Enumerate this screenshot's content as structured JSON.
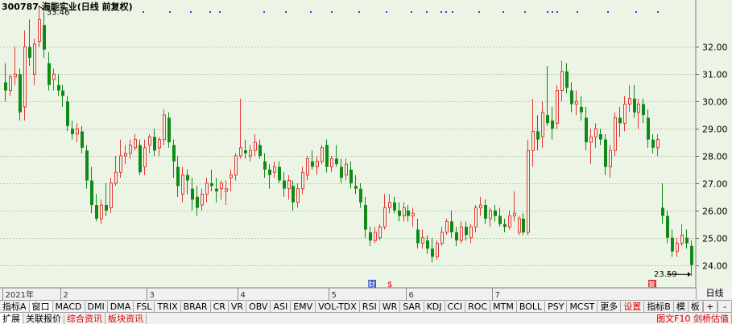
{
  "stock": {
    "code": "300787",
    "name": "海能实业",
    "period": "日线",
    "adjust": "前复权"
  },
  "header_title": "300787 海能实业(日线 前复权)",
  "y_axis": {
    "ticks": [
      24.0,
      25.0,
      26.0,
      27.0,
      28.0,
      29.0,
      30.0,
      31.0,
      32.0
    ],
    "tick_labels": [
      "24.00",
      "25.00",
      "26.00",
      "27.00",
      "28.00",
      "29.00",
      "30.00",
      "31.00",
      "32.00"
    ]
  },
  "x_axis": {
    "labels": [
      "2021年",
      "2",
      "3",
      "4",
      "5",
      "6",
      "7"
    ]
  },
  "high_marker": "33.46",
  "low_marker": "23.59",
  "event_badges": {
    "cai": "财",
    "s": "$",
    "fu": "复"
  },
  "period_box": "日线",
  "toolbar1": [
    "指标A",
    "窗口",
    "MACD",
    "DMI",
    "DMA",
    "FSL",
    "TRIX",
    "BRAR",
    "CR",
    "VR",
    "OBV",
    "ASI",
    "EMV",
    "VOL-TDX",
    "RSI",
    "WR",
    "SAR",
    "KDJ",
    "CCI",
    "ROC",
    "MTM",
    "BOLL",
    "PSY",
    "MCST",
    "更多",
    "设置"
  ],
  "toolbar1_right": [
    "指标B",
    "模",
    "板",
    "+",
    "-"
  ],
  "toolbar2": [
    "扩展",
    "关联报价",
    "综合资讯",
    "板块资讯"
  ],
  "toolbar2_right": "图文F10 剑桥估值",
  "colors": {
    "bg": "#ecf5e5",
    "up": "#e53935",
    "down": "#0f8a16",
    "grid": "#b8c8b0",
    "text": "#000000"
  },
  "chart_data": {
    "type": "candlestick",
    "y_range": [
      23.4,
      33.6
    ],
    "months": [
      {
        "label": "2021年",
        "index": 0
      },
      {
        "label": "2",
        "index": 12
      },
      {
        "label": "3",
        "index": 30
      },
      {
        "label": "4",
        "index": 49
      },
      {
        "label": "5",
        "index": 68
      },
      {
        "label": "6",
        "index": 84
      },
      {
        "label": "7",
        "index": 102
      }
    ],
    "candles": [
      [
        30.7,
        31.4,
        30.0,
        30.4
      ],
      [
        30.4,
        31.0,
        30.2,
        30.9
      ],
      [
        30.9,
        32.0,
        30.6,
        31.0
      ],
      [
        31.0,
        31.2,
        29.3,
        29.6
      ],
      [
        29.8,
        32.6,
        29.3,
        32.0
      ],
      [
        32.0,
        33.0,
        31.3,
        31.6
      ],
      [
        31.0,
        32.3,
        30.6,
        32.1
      ],
      [
        32.2,
        33.5,
        32.0,
        33.0
      ],
      [
        32.8,
        33.3,
        31.6,
        31.9
      ],
      [
        31.4,
        31.8,
        30.4,
        30.6
      ],
      [
        30.8,
        31.2,
        30.4,
        31.0
      ],
      [
        30.6,
        31.0,
        30.2,
        30.4
      ],
      [
        30.4,
        30.6,
        29.8,
        30.2
      ],
      [
        30.0,
        30.2,
        28.9,
        29.1
      ],
      [
        29.0,
        29.3,
        28.6,
        28.8
      ],
      [
        28.8,
        29.2,
        28.5,
        29.0
      ],
      [
        28.9,
        29.1,
        28.1,
        28.3
      ],
      [
        28.2,
        28.4,
        26.8,
        27.1
      ],
      [
        27.1,
        27.6,
        25.9,
        26.2
      ],
      [
        26.2,
        26.6,
        25.6,
        25.7
      ],
      [
        25.7,
        26.4,
        25.5,
        26.2
      ],
      [
        26.2,
        27.0,
        25.8,
        26.0
      ],
      [
        26.1,
        27.2,
        25.9,
        27.0
      ],
      [
        27.0,
        28.0,
        26.9,
        27.4
      ],
      [
        27.4,
        28.6,
        27.2,
        28.0
      ],
      [
        28.0,
        28.4,
        27.7,
        28.1
      ],
      [
        28.1,
        28.6,
        27.9,
        28.4
      ],
      [
        28.3,
        28.8,
        28.2,
        28.6
      ],
      [
        28.4,
        28.6,
        27.3,
        27.4
      ],
      [
        27.6,
        28.6,
        27.3,
        28.3
      ],
      [
        28.4,
        28.8,
        28.1,
        28.7
      ],
      [
        28.7,
        29.0,
        28.0,
        28.2
      ],
      [
        28.3,
        28.7,
        28.0,
        28.6
      ],
      [
        28.6,
        29.7,
        28.4,
        29.5
      ],
      [
        29.4,
        29.6,
        28.3,
        28.5
      ],
      [
        28.4,
        28.6,
        27.2,
        27.8
      ],
      [
        27.6,
        28.0,
        26.5,
        26.9
      ],
      [
        26.6,
        27.6,
        26.3,
        27.3
      ],
      [
        27.3,
        27.5,
        26.6,
        27.1
      ],
      [
        26.8,
        27.2,
        26.0,
        26.4
      ],
      [
        26.5,
        26.9,
        25.8,
        26.1
      ],
      [
        26.2,
        26.8,
        26.0,
        26.6
      ],
      [
        26.6,
        27.2,
        26.3,
        27.0
      ],
      [
        27.0,
        27.5,
        26.7,
        26.9
      ],
      [
        26.8,
        27.2,
        26.3,
        26.7
      ],
      [
        26.8,
        27.1,
        26.4,
        27.0
      ],
      [
        26.7,
        27.1,
        26.2,
        26.8
      ],
      [
        27.2,
        27.5,
        26.7,
        27.3
      ],
      [
        27.3,
        28.1,
        27.1,
        28.0
      ],
      [
        28.0,
        30.1,
        27.9,
        28.3
      ],
      [
        28.2,
        28.6,
        27.9,
        28.1
      ],
      [
        28.0,
        28.4,
        27.8,
        28.2
      ],
      [
        28.2,
        28.8,
        28.0,
        28.5
      ],
      [
        28.4,
        28.6,
        27.9,
        28.0
      ],
      [
        27.8,
        28.1,
        27.2,
        27.5
      ],
      [
        27.5,
        27.7,
        26.8,
        27.3
      ],
      [
        27.4,
        27.8,
        27.2,
        27.6
      ],
      [
        27.6,
        27.8,
        27.0,
        27.1
      ],
      [
        27.1,
        27.4,
        26.5,
        26.8
      ],
      [
        26.8,
        27.3,
        26.4,
        27.1
      ],
      [
        26.9,
        27.1,
        26.0,
        26.3
      ],
      [
        26.3,
        27.0,
        26.1,
        26.8
      ],
      [
        26.8,
        27.6,
        26.6,
        27.4
      ],
      [
        27.3,
        28.0,
        27.1,
        27.9
      ],
      [
        27.8,
        28.2,
        27.5,
        27.6
      ],
      [
        27.6,
        28.0,
        27.3,
        27.8
      ],
      [
        27.8,
        28.4,
        27.7,
        28.3
      ],
      [
        28.4,
        28.6,
        27.4,
        27.6
      ],
      [
        27.6,
        28.0,
        27.4,
        27.9
      ],
      [
        27.9,
        28.4,
        27.6,
        27.7
      ],
      [
        27.6,
        27.9,
        27.0,
        27.2
      ],
      [
        27.3,
        27.9,
        27.1,
        27.7
      ],
      [
        27.5,
        27.8,
        26.8,
        27.0
      ],
      [
        26.9,
        27.3,
        26.6,
        26.8
      ],
      [
        26.8,
        27.0,
        26.1,
        26.3
      ],
      [
        26.2,
        26.5,
        25.0,
        25.3
      ],
      [
        25.2,
        25.4,
        24.7,
        24.9
      ],
      [
        24.9,
        25.4,
        24.8,
        25.2
      ],
      [
        25.0,
        25.5,
        24.9,
        25.4
      ],
      [
        25.4,
        26.6,
        25.3,
        26.1
      ],
      [
        26.1,
        26.6,
        25.9,
        26.3
      ],
      [
        26.3,
        26.5,
        25.9,
        26.0
      ],
      [
        26.0,
        26.3,
        25.6,
        25.8
      ],
      [
        25.8,
        26.3,
        25.6,
        26.1
      ],
      [
        26.0,
        26.2,
        25.6,
        25.8
      ],
      [
        25.8,
        26.1,
        25.4,
        25.9
      ],
      [
        25.3,
        25.7,
        24.6,
        24.8
      ],
      [
        24.8,
        25.3,
        24.6,
        25.0
      ],
      [
        24.9,
        25.1,
        24.4,
        24.6
      ],
      [
        24.6,
        25.0,
        24.1,
        24.3
      ],
      [
        24.3,
        24.9,
        24.2,
        24.8
      ],
      [
        24.8,
        25.4,
        24.7,
        25.2
      ],
      [
        25.2,
        25.7,
        25.1,
        25.6
      ],
      [
        25.6,
        26.0,
        25.0,
        25.2
      ],
      [
        25.2,
        25.4,
        24.7,
        24.9
      ],
      [
        24.9,
        25.6,
        24.8,
        25.4
      ],
      [
        25.4,
        25.6,
        24.9,
        25.1
      ],
      [
        25.0,
        25.5,
        24.8,
        25.4
      ],
      [
        25.4,
        26.2,
        25.2,
        26.1
      ],
      [
        26.1,
        26.5,
        25.8,
        26.2
      ],
      [
        26.2,
        26.4,
        25.5,
        25.7
      ],
      [
        25.7,
        26.1,
        25.4,
        26.0
      ],
      [
        26.0,
        26.2,
        25.6,
        25.8
      ],
      [
        25.8,
        26.1,
        25.4,
        25.5
      ],
      [
        25.5,
        25.7,
        25.2,
        25.4
      ],
      [
        25.4,
        26.0,
        25.3,
        25.8
      ],
      [
        25.8,
        26.7,
        25.6,
        25.9
      ],
      [
        25.2,
        25.8,
        25.1,
        25.7
      ],
      [
        25.7,
        25.9,
        25.1,
        25.2
      ],
      [
        25.2,
        28.6,
        25.1,
        28.2
      ],
      [
        28.2,
        30.1,
        27.6,
        28.9
      ],
      [
        28.9,
        29.5,
        28.2,
        28.6
      ],
      [
        28.7,
        30.0,
        28.3,
        29.6
      ],
      [
        29.5,
        31.3,
        29.1,
        29.2
      ],
      [
        29.3,
        29.8,
        28.6,
        29.0
      ],
      [
        29.2,
        30.6,
        29.0,
        30.4
      ],
      [
        30.4,
        31.5,
        30.0,
        31.1
      ],
      [
        31.1,
        31.4,
        30.3,
        30.5
      ],
      [
        30.4,
        30.7,
        29.6,
        29.9
      ],
      [
        29.9,
        30.4,
        29.5,
        30.0
      ],
      [
        29.8,
        30.2,
        29.3,
        29.6
      ],
      [
        29.4,
        29.8,
        28.2,
        28.5
      ],
      [
        28.5,
        29.0,
        27.7,
        28.7
      ],
      [
        28.7,
        29.2,
        28.3,
        29.0
      ],
      [
        28.8,
        29.0,
        28.4,
        28.6
      ],
      [
        28.6,
        28.8,
        27.3,
        27.6
      ],
      [
        27.6,
        28.4,
        27.2,
        28.2
      ],
      [
        28.2,
        29.6,
        28.0,
        29.4
      ],
      [
        29.4,
        29.8,
        28.7,
        29.2
      ],
      [
        29.2,
        30.2,
        28.9,
        29.9
      ],
      [
        29.9,
        30.6,
        29.6,
        30.1
      ],
      [
        30.1,
        30.6,
        29.4,
        29.6
      ],
      [
        29.6,
        30.1,
        29.0,
        29.9
      ],
      [
        29.9,
        30.1,
        29.2,
        29.5
      ],
      [
        29.4,
        29.7,
        28.3,
        28.6
      ],
      [
        28.6,
        28.8,
        28.1,
        28.3
      ],
      [
        28.3,
        28.8,
        28.0,
        28.6
      ],
      [
        26.1,
        27.0,
        25.5,
        25.8
      ],
      [
        25.8,
        26.0,
        24.8,
        25.0
      ],
      [
        25.0,
        25.3,
        24.3,
        24.5
      ],
      [
        24.5,
        25.0,
        24.3,
        24.8
      ],
      [
        24.8,
        25.5,
        24.7,
        25.1
      ],
      [
        25.0,
        25.3,
        24.6,
        24.8
      ],
      [
        24.7,
        24.9,
        23.6,
        24.0
      ]
    ]
  }
}
